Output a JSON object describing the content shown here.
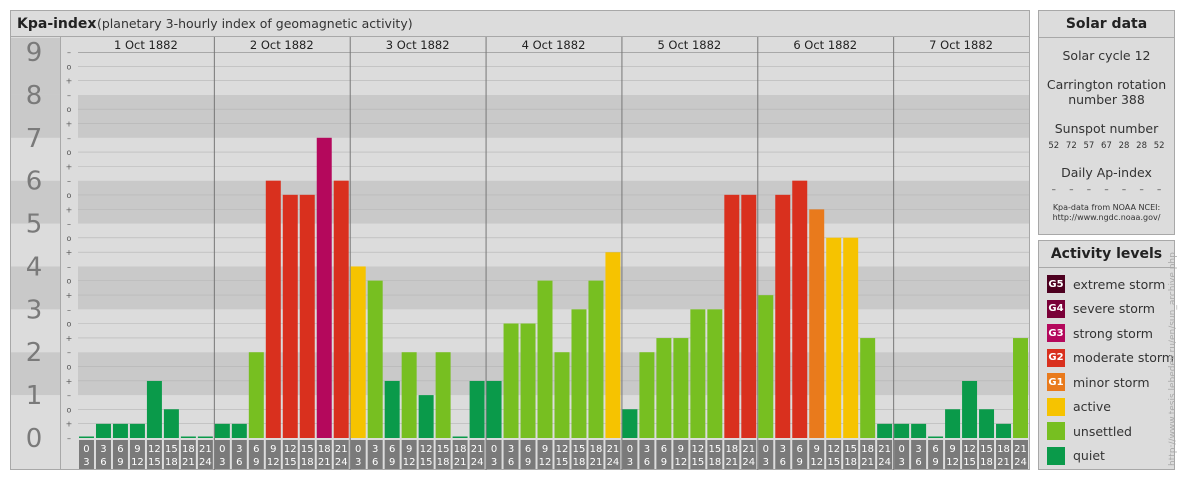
{
  "chart_data": {
    "type": "bar",
    "title": "Kpa-index",
    "subtitle": "(planetary 3-hourly index of geomagnetic activity)",
    "ylim": [
      0,
      9
    ],
    "y_ticks": [
      "0",
      "1",
      "2",
      "3",
      "4",
      "5",
      "6",
      "7",
      "8",
      "9"
    ],
    "minor_tick_labels": [
      "–",
      "+",
      "o"
    ],
    "days": [
      "1 Oct 1882",
      "2 Oct 1882",
      "3 Oct 1882",
      "4 Oct 1882",
      "5 Oct 1882",
      "6 Oct 1882",
      "7 Oct 1882"
    ],
    "interval_starts": [
      "0",
      "3",
      "6",
      "9",
      "12",
      "15",
      "18",
      "21"
    ],
    "interval_ends": [
      "3",
      "6",
      "9",
      "12",
      "15",
      "18",
      "21",
      "24"
    ],
    "values": [
      0.0,
      0.33,
      0.33,
      0.33,
      1.33,
      0.67,
      0.0,
      0.0,
      0.33,
      0.33,
      2.0,
      6.0,
      5.67,
      5.67,
      7.0,
      6.0,
      4.0,
      3.67,
      1.33,
      2.0,
      1.0,
      2.0,
      0.0,
      1.33,
      1.33,
      2.67,
      2.67,
      3.67,
      2.0,
      3.0,
      3.67,
      4.33,
      0.67,
      2.0,
      2.33,
      2.33,
      3.0,
      3.0,
      5.67,
      5.67,
      3.33,
      5.67,
      6.0,
      5.33,
      4.67,
      4.67,
      2.33,
      0.33,
      0.33,
      0.33,
      0.0,
      0.67,
      1.33,
      0.67,
      0.33,
      2.33
    ],
    "grid": true
  },
  "colors": {
    "quiet": "#0a9a4a",
    "unsettled": "#77bf21",
    "active": "#f6c300",
    "minor_storm": "#e97a1c",
    "moderate_storm": "#d9301e",
    "strong_storm": "#b4085c",
    "severe_storm": "#7a0038",
    "extreme_storm": "#4d0020",
    "background": "#dcdcdc",
    "band_dark": "#c9c9c9"
  },
  "solar": {
    "title": "Solar data",
    "cycle": "Solar cycle 12",
    "carrington": "Carrington rotation number 388",
    "sunspot_label": "Sunspot number",
    "sunspot_values": [
      "52",
      "72",
      "57",
      "67",
      "28",
      "28",
      "52"
    ],
    "ap_label": "Daily Ap-index",
    "ap_values": [
      "–",
      "–",
      "–",
      "–",
      "–",
      "–",
      "–"
    ],
    "credit_line1": "Kpa-data from NOAA NCEI:",
    "credit_line2": "http://www.ngdc.noaa.gov/"
  },
  "legend": {
    "title": "Activity levels",
    "items": [
      {
        "code": "G5",
        "label": "extreme storm",
        "color": "#4d0020"
      },
      {
        "code": "G4",
        "label": "severe storm",
        "color": "#7a0038"
      },
      {
        "code": "G3",
        "label": "strong storm",
        "color": "#b4085c"
      },
      {
        "code": "G2",
        "label": "moderate storm",
        "color": "#d9301e"
      },
      {
        "code": "G1",
        "label": "minor storm",
        "color": "#e97a1c"
      },
      {
        "code": "",
        "label": "active",
        "color": "#f6c300"
      },
      {
        "code": "",
        "label": "unsettled",
        "color": "#77bf21"
      },
      {
        "code": "",
        "label": "quiet",
        "color": "#0a9a4a"
      }
    ]
  },
  "watermark": "http://www.tesis.lebedev.ru/en/sun_archive.php"
}
